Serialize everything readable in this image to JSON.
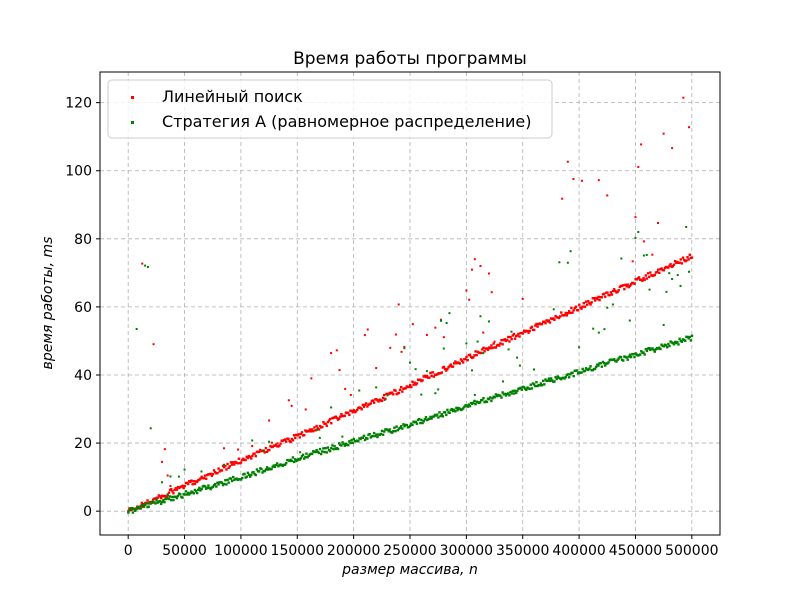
{
  "chart_data": {
    "type": "scatter",
    "title": "Время работы программы",
    "xlabel": "размер массива, n",
    "ylabel": "время работы, ms",
    "xlim": [
      -25000,
      525000
    ],
    "ylim": [
      -7,
      129
    ],
    "xticks": [
      0,
      50000,
      100000,
      150000,
      200000,
      250000,
      300000,
      350000,
      400000,
      450000,
      500000
    ],
    "yticks": [
      0,
      20,
      40,
      60,
      80,
      100,
      120
    ],
    "grid": true,
    "legend_position": "top-left",
    "series": [
      {
        "name": "Линейный поиск",
        "color": "#ff0000",
        "trend_low": [
          [
            0,
            0
          ],
          [
            50000,
            7.5
          ],
          [
            100000,
            15
          ],
          [
            150000,
            22
          ],
          [
            200000,
            29.5
          ],
          [
            250000,
            37
          ],
          [
            300000,
            45
          ],
          [
            350000,
            52.5
          ],
          [
            400000,
            60
          ],
          [
            450000,
            67.5
          ],
          [
            500000,
            75
          ]
        ],
        "outlier_upper": [
          [
            30000,
            19
          ],
          [
            80000,
            22
          ],
          [
            120000,
            28
          ],
          [
            170000,
            43
          ],
          [
            210000,
            57
          ],
          [
            260000,
            65
          ],
          [
            300000,
            80
          ],
          [
            350000,
            92
          ],
          [
            400000,
            107
          ],
          [
            430000,
            113
          ],
          [
            460000,
            117
          ],
          [
            500000,
            123
          ]
        ]
      },
      {
        "name": "Стратегия A (равномерное распределение)",
        "color": "#008000",
        "trend_low": [
          [
            0,
            0
          ],
          [
            50000,
            5
          ],
          [
            100000,
            10
          ],
          [
            150000,
            15.5
          ],
          [
            200000,
            20.5
          ],
          [
            250000,
            25.5
          ],
          [
            300000,
            31
          ],
          [
            350000,
            36
          ],
          [
            400000,
            41
          ],
          [
            450000,
            46
          ],
          [
            500000,
            51
          ]
        ],
        "outlier_upper": [
          [
            30000,
            12
          ],
          [
            80000,
            17
          ],
          [
            120000,
            24
          ],
          [
            170000,
            29
          ],
          [
            210000,
            41
          ],
          [
            260000,
            52
          ],
          [
            300000,
            63
          ],
          [
            350000,
            67
          ],
          [
            400000,
            80
          ],
          [
            430000,
            82
          ],
          [
            460000,
            88
          ],
          [
            500000,
            86
          ]
        ]
      }
    ]
  }
}
